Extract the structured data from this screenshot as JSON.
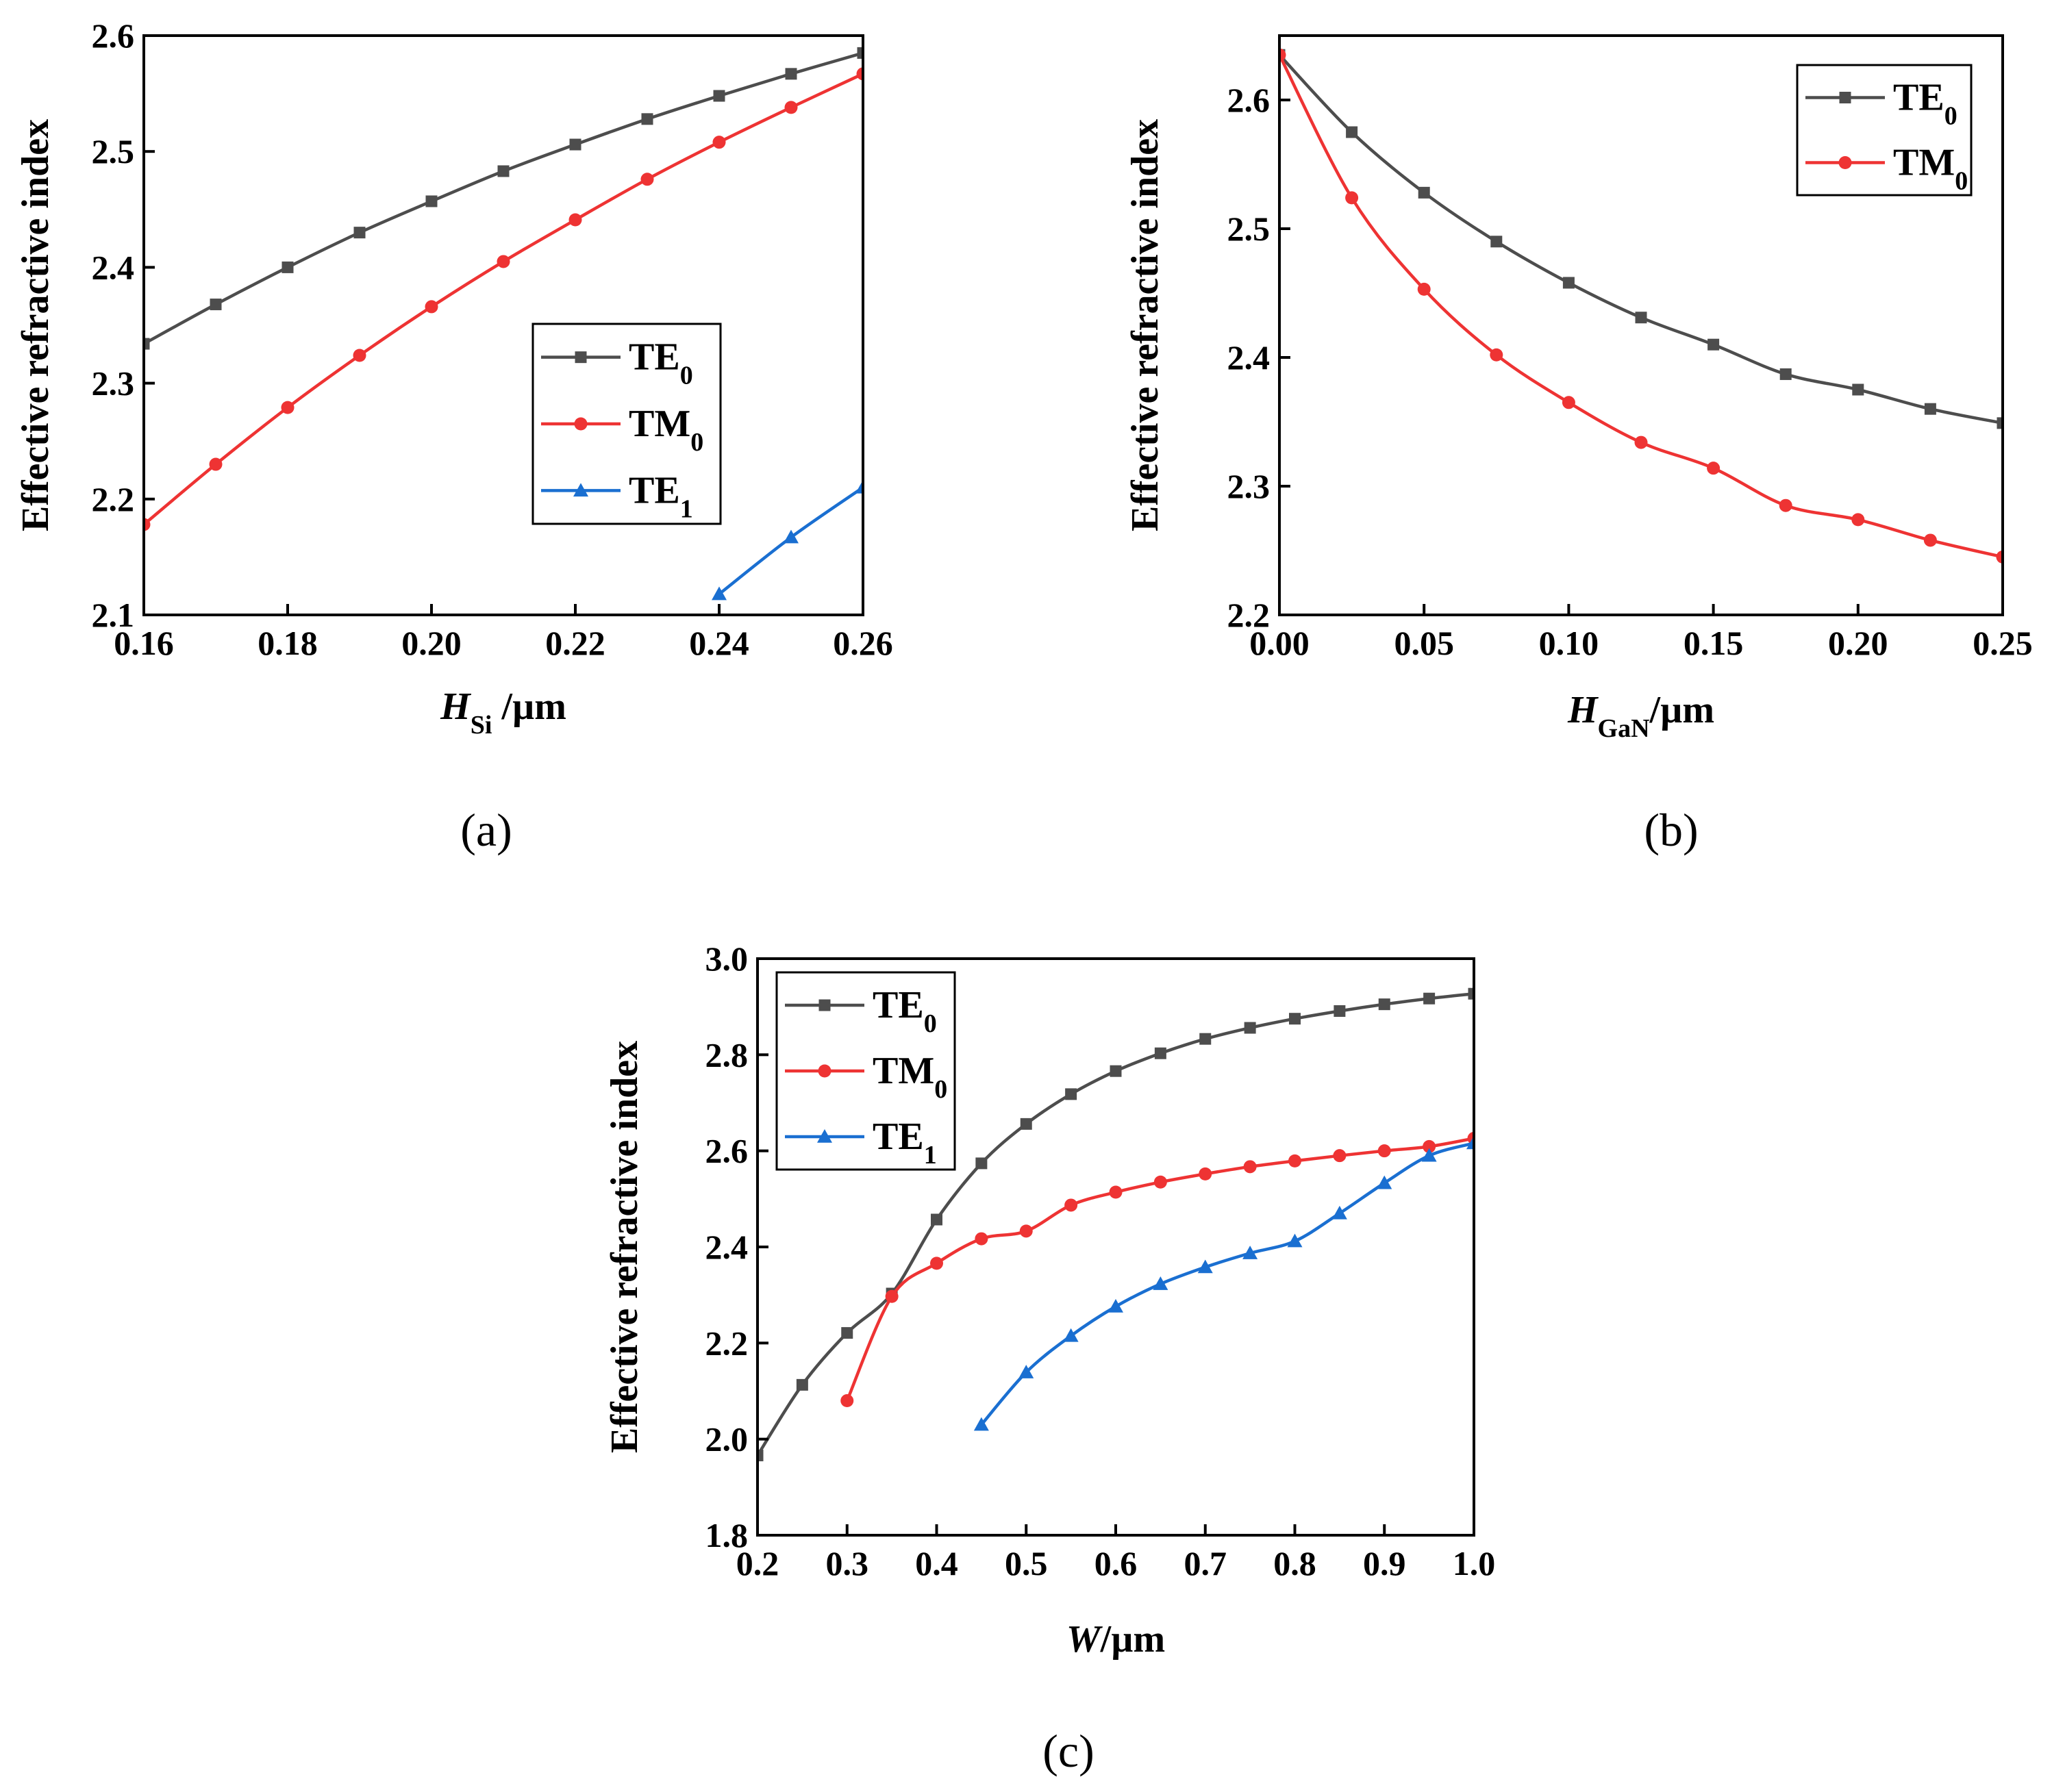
{
  "chart_data": [
    {
      "type": "line",
      "panel_label": "(a)",
      "xlabel": {
        "main": "H",
        "sub": "Si",
        "unit": " /µm"
      },
      "ylabel": "Effective refractive index",
      "xlim": [
        0.16,
        0.26
      ],
      "ylim": [
        2.1,
        2.6
      ],
      "xticks": [
        "0.16",
        "0.18",
        "0.20",
        "0.22",
        "0.24",
        "0.26"
      ],
      "yticks": [
        "2.1",
        "2.2",
        "2.3",
        "2.4",
        "2.5",
        "2.6"
      ],
      "legend_position": "center-right",
      "series": [
        {
          "name": "TE",
          "sub": "0",
          "color": "#4d4d4d",
          "marker": "square",
          "x": [
            0.16,
            0.17,
            0.18,
            0.19,
            0.2,
            0.21,
            0.22,
            0.23,
            0.24,
            0.25,
            0.26
          ],
          "y": [
            2.334,
            2.368,
            2.4,
            2.43,
            2.457,
            2.483,
            2.506,
            2.528,
            2.548,
            2.567,
            2.585
          ]
        },
        {
          "name": "TM",
          "sub": "0",
          "color": "#ee3333",
          "marker": "circle",
          "x": [
            0.16,
            0.17,
            0.18,
            0.19,
            0.2,
            0.21,
            0.22,
            0.23,
            0.24,
            0.25,
            0.26
          ],
          "y": [
            2.178,
            2.23,
            2.279,
            2.324,
            2.366,
            2.405,
            2.441,
            2.476,
            2.508,
            2.538,
            2.567
          ]
        },
        {
          "name": "TE",
          "sub": "1",
          "color": "#1a6fd1",
          "marker": "triangle",
          "x": [
            0.24,
            0.25,
            0.26
          ],
          "y": [
            2.118,
            2.167,
            2.21
          ]
        }
      ]
    },
    {
      "type": "line",
      "panel_label": "(b)",
      "xlabel": {
        "main": "H",
        "sub": "GaN",
        "unit": "/µm"
      },
      "ylabel": "Effective refractive index",
      "xlim": [
        0.0,
        0.25
      ],
      "ylim": [
        2.2,
        2.65
      ],
      "xticks": [
        "0.00",
        "0.05",
        "0.10",
        "0.15",
        "0.20",
        "0.25"
      ],
      "yticks": [
        "2.2",
        "2.3",
        "2.4",
        "2.5",
        "2.6"
      ],
      "legend_position": "top-right",
      "series": [
        {
          "name": "TE",
          "sub": "0",
          "color": "#4d4d4d",
          "marker": "square",
          "x": [
            0.0,
            0.025,
            0.05,
            0.075,
            0.1,
            0.125,
            0.15,
            0.175,
            0.2,
            0.225,
            0.25
          ],
          "y": [
            2.635,
            2.575,
            2.528,
            2.49,
            2.458,
            2.431,
            2.41,
            2.387,
            2.375,
            2.36,
            2.349
          ]
        },
        {
          "name": "TM",
          "sub": "0",
          "color": "#ee3333",
          "marker": "circle",
          "x": [
            0.0,
            0.025,
            0.05,
            0.075,
            0.1,
            0.125,
            0.15,
            0.175,
            0.2,
            0.225,
            0.25
          ],
          "y": [
            2.635,
            2.524,
            2.453,
            2.402,
            2.365,
            2.334,
            2.314,
            2.285,
            2.274,
            2.258,
            2.245
          ]
        }
      ]
    },
    {
      "type": "line",
      "panel_label": "(c)",
      "xlabel": {
        "main": "W",
        "sub": "",
        "unit": "/µm"
      },
      "ylabel": "Effective refractive index",
      "xlim": [
        0.2,
        1.0
      ],
      "ylim": [
        1.8,
        3.0
      ],
      "xticks": [
        "0.2",
        "0.3",
        "0.4",
        "0.5",
        "0.6",
        "0.7",
        "0.8",
        "0.9",
        "1.0"
      ],
      "yticks": [
        "1.8",
        "2.0",
        "2.2",
        "2.4",
        "2.6",
        "2.8",
        "3.0"
      ],
      "legend_position": "top-left",
      "series": [
        {
          "name": "TE",
          "sub": "0",
          "color": "#4d4d4d",
          "marker": "square",
          "x": [
            0.2,
            0.25,
            0.3,
            0.35,
            0.4,
            0.45,
            0.5,
            0.55,
            0.6,
            0.65,
            0.7,
            0.75,
            0.8,
            0.85,
            0.9,
            0.95,
            1.0
          ],
          "y": [
            1.966,
            2.113,
            2.221,
            2.303,
            2.457,
            2.574,
            2.656,
            2.718,
            2.766,
            2.803,
            2.833,
            2.856,
            2.875,
            2.891,
            2.905,
            2.917,
            2.927
          ]
        },
        {
          "name": "TM",
          "sub": "0",
          "color": "#ee3333",
          "marker": "circle",
          "x": [
            0.3,
            0.35,
            0.4,
            0.45,
            0.5,
            0.55,
            0.6,
            0.65,
            0.7,
            0.75,
            0.8,
            0.85,
            0.9,
            0.95,
            1.0
          ],
          "y": [
            2.08,
            2.297,
            2.366,
            2.417,
            2.433,
            2.487,
            2.514,
            2.535,
            2.552,
            2.567,
            2.579,
            2.59,
            2.6,
            2.609,
            2.626
          ]
        },
        {
          "name": "TE",
          "sub": "1",
          "color": "#1a6fd1",
          "marker": "triangle",
          "x": [
            0.45,
            0.5,
            0.55,
            0.6,
            0.65,
            0.7,
            0.75,
            0.8,
            0.85,
            0.9,
            0.95,
            1.0
          ],
          "y": [
            2.03,
            2.139,
            2.215,
            2.276,
            2.323,
            2.358,
            2.387,
            2.412,
            2.47,
            2.533,
            2.59,
            2.616
          ]
        }
      ]
    }
  ]
}
